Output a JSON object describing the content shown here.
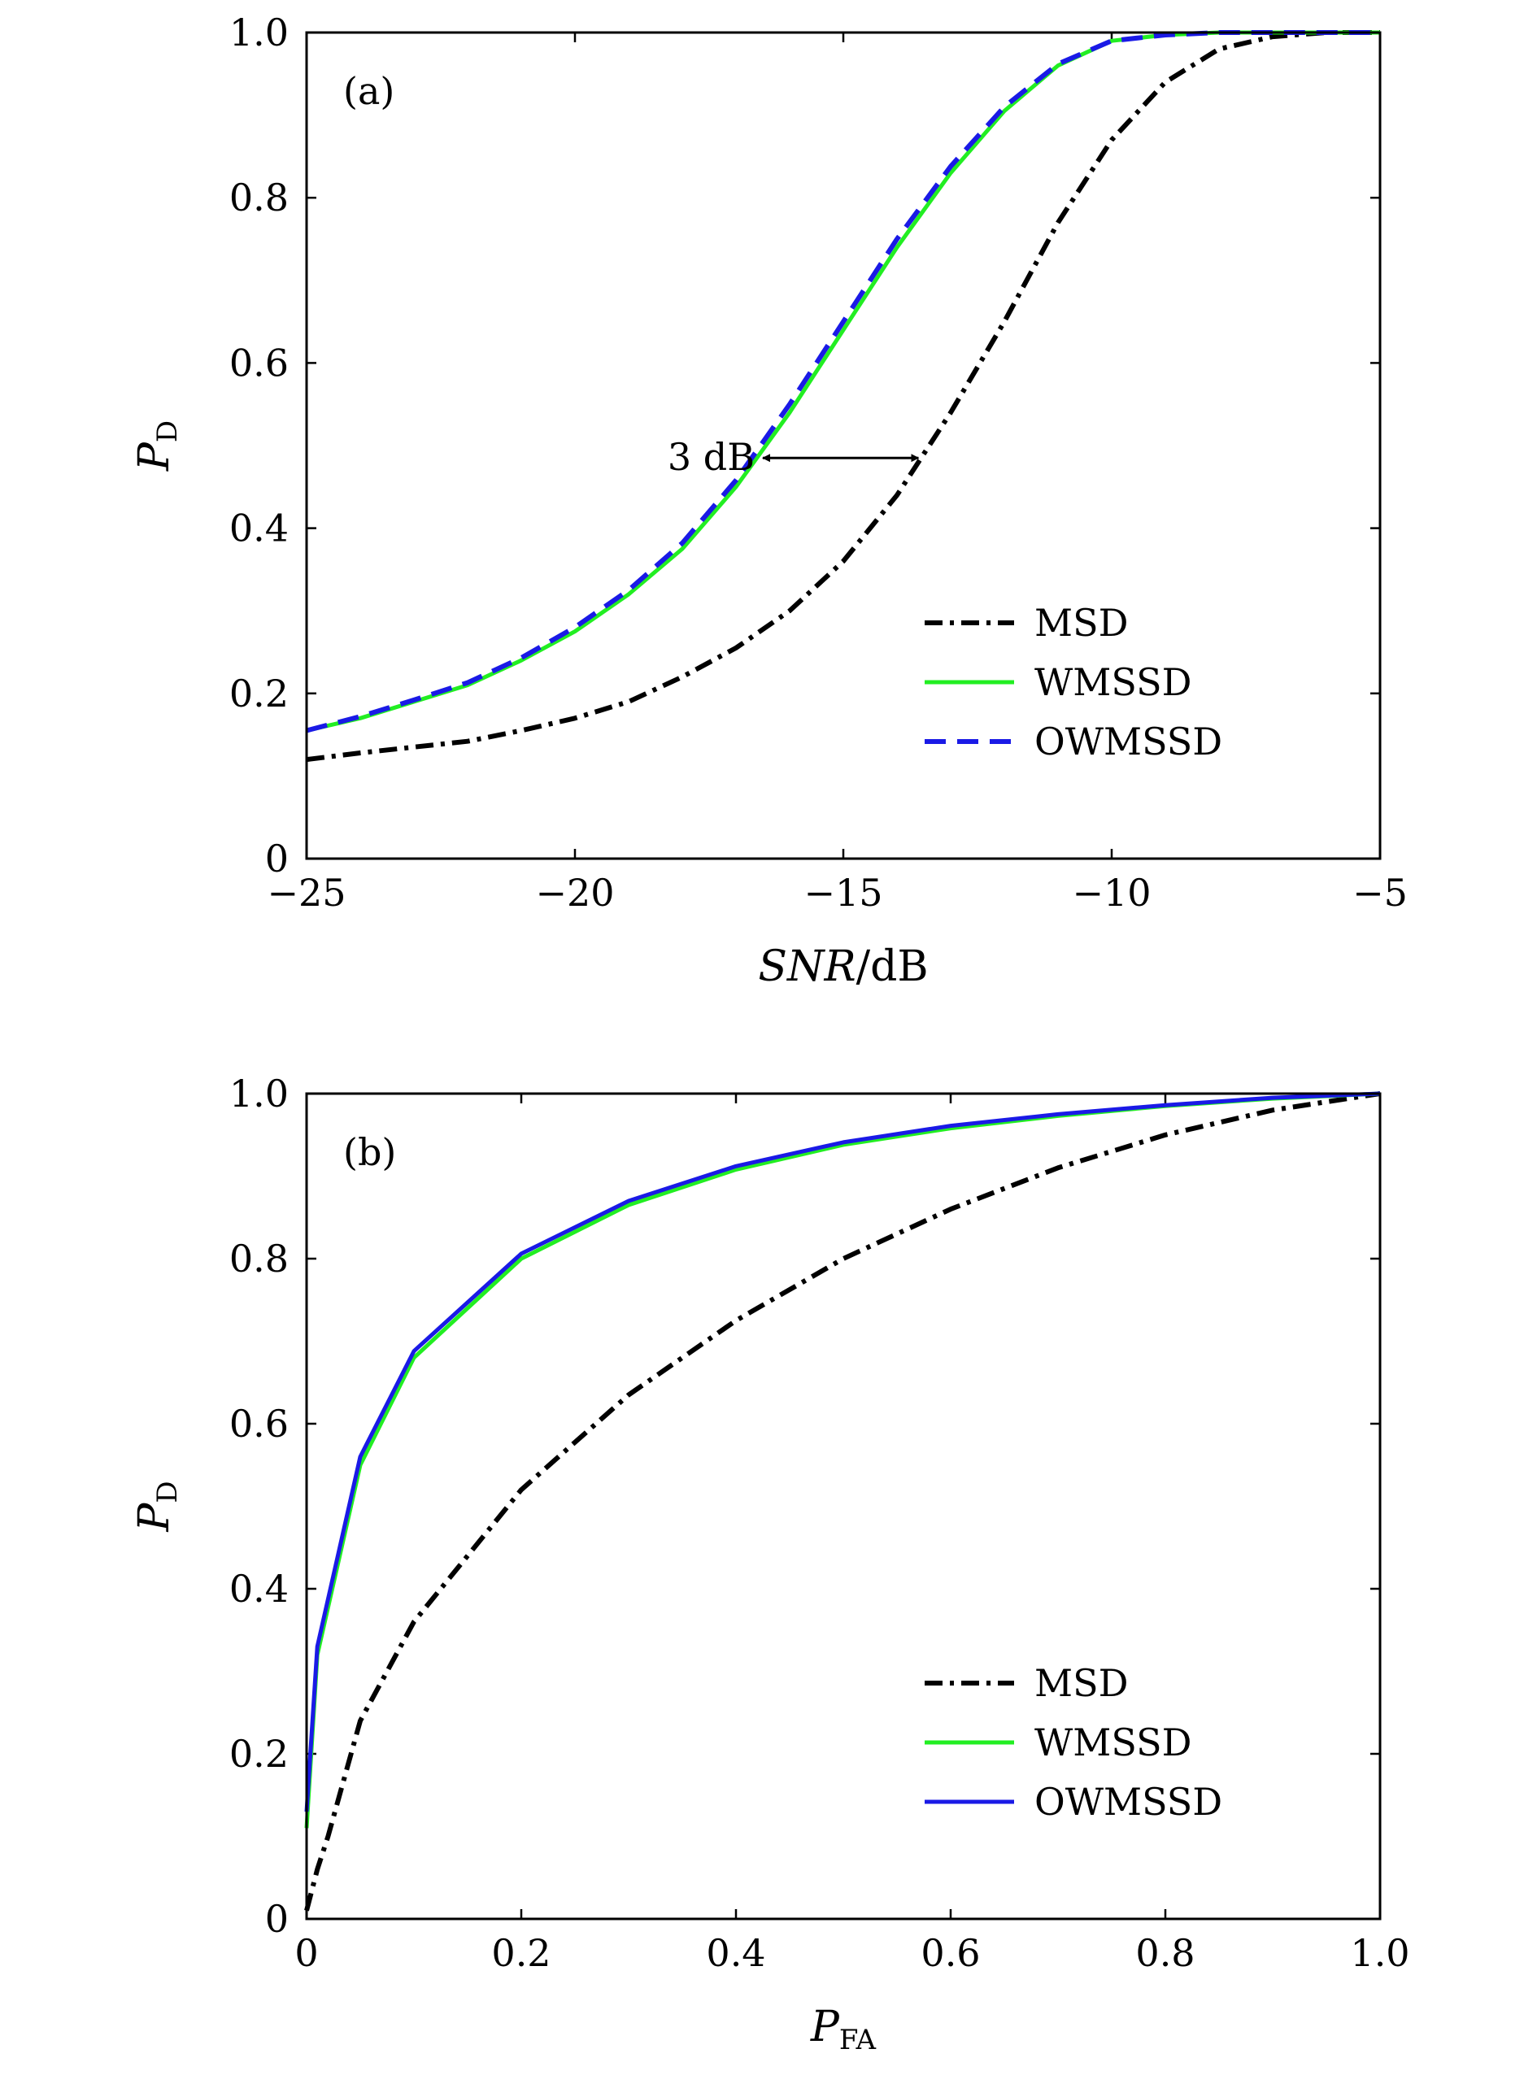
{
  "chart_data": [
    {
      "type": "line",
      "panel_label": "(a)",
      "xlabel": {
        "main": "SNR",
        "suffix": "/dB"
      },
      "ylabel": {
        "main": "P",
        "sub": "D"
      },
      "xlim": [
        -25,
        -5
      ],
      "ylim": [
        0,
        1
      ],
      "xticks": [
        -25,
        -20,
        -15,
        -10,
        -5
      ],
      "xtick_labels": [
        "−25",
        "−20",
        "−15",
        "−10",
        "−5"
      ],
      "yticks": [
        0,
        0.2,
        0.4,
        0.6,
        0.8,
        1.0
      ],
      "ytick_labels": [
        "0",
        "0.2",
        "0.4",
        "0.6",
        "0.8",
        "1.0"
      ],
      "grid": false,
      "legend_position": "lower-right",
      "annotation": {
        "text": "3 dB",
        "from_x": -16.5,
        "to_x": -13.6,
        "y": 0.485
      },
      "series": [
        {
          "name": "MSD",
          "color": "#000000",
          "style": "dashdot",
          "x": [
            -25,
            -24,
            -23,
            -22,
            -21,
            -20,
            -19,
            -18,
            -17,
            -16,
            -15,
            -14,
            -13,
            -12,
            -11,
            -10,
            -9,
            -8,
            -7,
            -6,
            -5
          ],
          "y": [
            0.12,
            0.128,
            0.135,
            0.142,
            0.155,
            0.17,
            0.19,
            0.22,
            0.255,
            0.3,
            0.36,
            0.44,
            0.54,
            0.65,
            0.77,
            0.87,
            0.94,
            0.98,
            0.995,
            1.0,
            1.0
          ]
        },
        {
          "name": "WMSSD",
          "color": "#22ee22",
          "style": "solid",
          "x": [
            -25,
            -24,
            -23,
            -22,
            -21,
            -20,
            -19,
            -18,
            -17,
            -16,
            -15,
            -14,
            -13,
            -12,
            -11,
            -10,
            -9,
            -8,
            -7,
            -6,
            -5
          ],
          "y": [
            0.155,
            0.17,
            0.19,
            0.21,
            0.24,
            0.275,
            0.32,
            0.375,
            0.45,
            0.54,
            0.64,
            0.74,
            0.83,
            0.905,
            0.96,
            0.99,
            0.997,
            1.0,
            1.0,
            1.0,
            1.0
          ]
        },
        {
          "name": "OWMSSD",
          "color": "#1a1ae6",
          "style": "dashed",
          "x": [
            -25,
            -24,
            -23,
            -22,
            -21,
            -20,
            -19,
            -18,
            -17,
            -16,
            -15,
            -14,
            -13,
            -12,
            -11,
            -10,
            -9,
            -8,
            -7,
            -6,
            -5
          ],
          "y": [
            0.155,
            0.172,
            0.192,
            0.213,
            0.243,
            0.28,
            0.325,
            0.382,
            0.458,
            0.55,
            0.65,
            0.75,
            0.838,
            0.91,
            0.962,
            0.99,
            0.997,
            1.0,
            1.0,
            1.0,
            1.0
          ]
        }
      ]
    },
    {
      "type": "line",
      "panel_label": "(b)",
      "xlabel": {
        "main": "P",
        "sub": "FA"
      },
      "ylabel": {
        "main": "P",
        "sub": "D"
      },
      "xlim": [
        0,
        1
      ],
      "ylim": [
        0,
        1
      ],
      "xticks": [
        0,
        0.2,
        0.4,
        0.6,
        0.8,
        1.0
      ],
      "xtick_labels": [
        "0",
        "0.2",
        "0.4",
        "0.6",
        "0.8",
        "1.0"
      ],
      "yticks": [
        0,
        0.2,
        0.4,
        0.6,
        0.8,
        1.0
      ],
      "ytick_labels": [
        "0",
        "0.2",
        "0.4",
        "0.6",
        "0.8",
        "1.0"
      ],
      "grid": false,
      "legend_position": "lower-right",
      "series": [
        {
          "name": "MSD",
          "color": "#000000",
          "style": "dashdot",
          "x": [
            0,
            0.01,
            0.02,
            0.05,
            0.1,
            0.2,
            0.3,
            0.4,
            0.5,
            0.6,
            0.7,
            0.8,
            0.9,
            1.0
          ],
          "y": [
            0.01,
            0.06,
            0.1,
            0.24,
            0.36,
            0.52,
            0.635,
            0.725,
            0.8,
            0.86,
            0.91,
            0.95,
            0.98,
            1.0
          ]
        },
        {
          "name": "WMSSD",
          "color": "#22ee22",
          "style": "solid",
          "x": [
            0,
            0.01,
            0.05,
            0.1,
            0.2,
            0.3,
            0.4,
            0.5,
            0.6,
            0.7,
            0.8,
            0.9,
            1.0
          ],
          "y": [
            0.11,
            0.32,
            0.55,
            0.68,
            0.8,
            0.865,
            0.908,
            0.938,
            0.958,
            0.973,
            0.985,
            0.994,
            1.0
          ]
        },
        {
          "name": "OWMSSD",
          "color": "#1a1ae6",
          "style": "solid",
          "x": [
            0,
            0.01,
            0.05,
            0.1,
            0.2,
            0.3,
            0.4,
            0.5,
            0.6,
            0.7,
            0.8,
            0.9,
            1.0
          ],
          "y": [
            0.13,
            0.33,
            0.56,
            0.688,
            0.806,
            0.87,
            0.912,
            0.941,
            0.961,
            0.975,
            0.986,
            0.995,
            1.0
          ]
        }
      ]
    }
  ]
}
